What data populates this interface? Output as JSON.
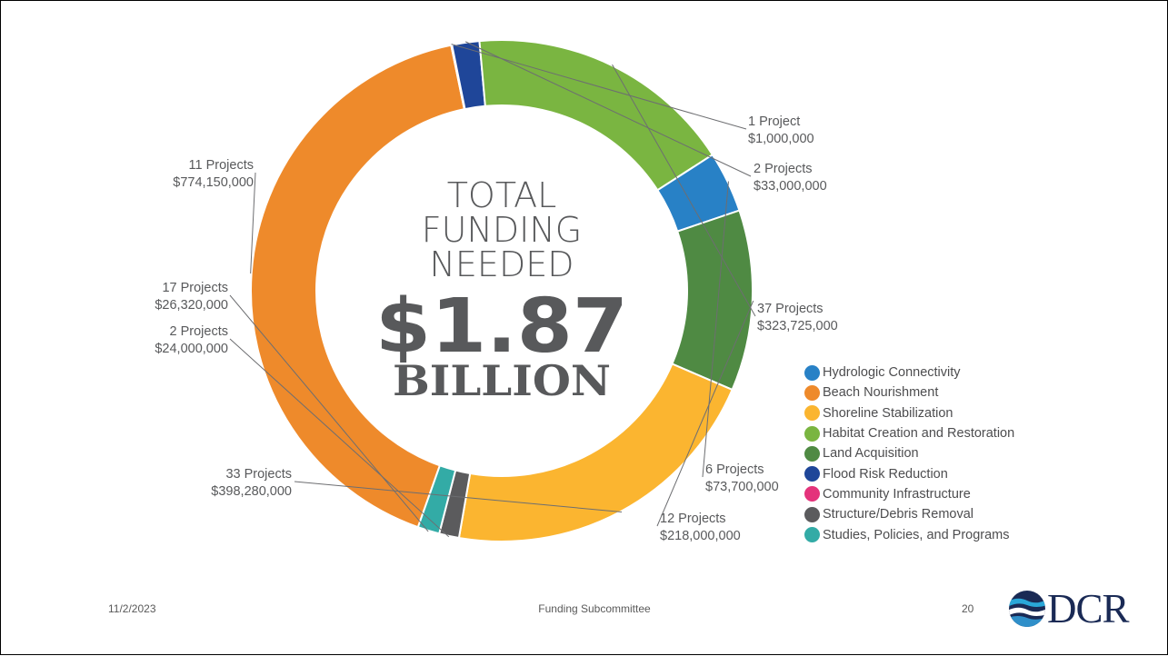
{
  "chart_data": {
    "type": "pie",
    "center_text": {
      "line1": "TOTAL",
      "line2": "FUNDING",
      "line3": "NEEDED",
      "amount": "$1.87",
      "unit": "BILLION"
    },
    "slices": [
      {
        "category": "Beach Nourishment",
        "projects_label": "11 Projects",
        "amount_label": "$774,150,000",
        "value": 774150000,
        "color": "#ee8a2b"
      },
      {
        "category": "Community Infrastructure",
        "projects_label": "1 Project",
        "amount_label": "$1,000,000",
        "value": 1000000,
        "color": "#e4337b"
      },
      {
        "category": "Flood Risk Reduction",
        "projects_label": "2 Projects",
        "amount_label": "$33,000,000",
        "value": 33000000,
        "color": "#1f4699"
      },
      {
        "category": "Habitat Creation and Restoration",
        "projects_label": "37 Projects",
        "amount_label": "$323,725,000",
        "value": 323725000,
        "color": "#7ab541"
      },
      {
        "category": "Hydrologic Connectivity",
        "projects_label": "6 Projects",
        "amount_label": "$73,700,000",
        "value": 73700000,
        "color": "#2881c6"
      },
      {
        "category": "Land Acquisition",
        "projects_label": "12 Projects",
        "amount_label": "$218,000,000",
        "value": 218000000,
        "color": "#4f8a43"
      },
      {
        "category": "Shoreline Stabilization",
        "projects_label": "33 Projects",
        "amount_label": "$398,280,000",
        "value": 398280000,
        "color": "#fbb530"
      },
      {
        "category": "Structure/Debris Removal",
        "projects_label": "2 Projects",
        "amount_label": "$24,000,000",
        "value": 24000000,
        "color": "#5b5b5d"
      },
      {
        "category": "Studies, Policies, and Programs",
        "projects_label": "17 Projects",
        "amount_label": "$26,320,000",
        "value": 26320000,
        "color": "#33aba6"
      }
    ],
    "legend": [
      {
        "label": "Hydrologic Connectivity",
        "color": "#2881c6"
      },
      {
        "label": "Beach Nourishment",
        "color": "#ee8a2b"
      },
      {
        "label": "Shoreline Stabilization",
        "color": "#fbb530"
      },
      {
        "label": "Habitat Creation and Restoration",
        "color": "#7ab541"
      },
      {
        "label": "Land Acquisition",
        "color": "#4f8a43"
      },
      {
        "label": "Flood Risk Reduction",
        "color": "#1f4699"
      },
      {
        "label": "Community Infrastructure",
        "color": "#e4337b"
      },
      {
        "label": "Structure/Debris Removal",
        "color": "#5b5b5d"
      },
      {
        "label": "Studies, Policies, and Programs",
        "color": "#33aba6"
      }
    ],
    "legend_position": "bottom-right"
  },
  "footer": {
    "date": "11/2/2023",
    "center": "Funding Subcommittee",
    "page_number": "20",
    "logo_text": "DCR"
  }
}
